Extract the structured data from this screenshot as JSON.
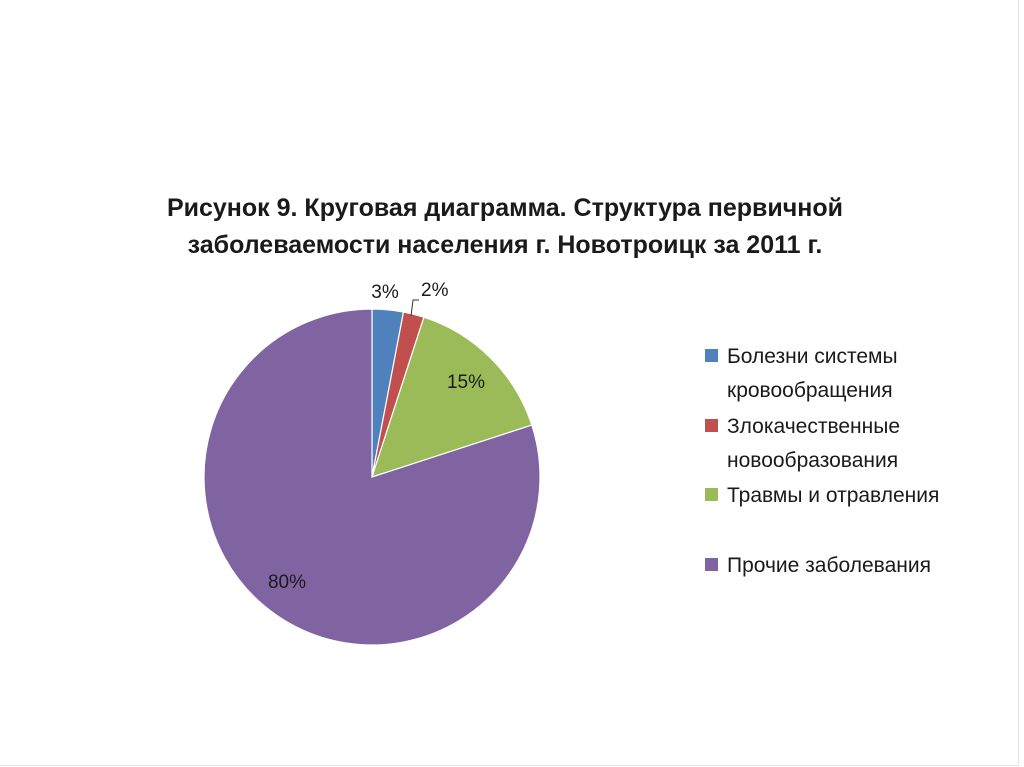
{
  "title_lines": [
    "Рисунок 9. Круговая диаграмма. Структура первичной",
    "заболеваемости населения г. Новотроицк за 2011 г."
  ],
  "chart_data": {
    "type": "pie",
    "title": "Рисунок 9. Круговая диаграмма. Структура первичной заболеваемости населения г. Новотроицк за 2011 г.",
    "legend_position": "right",
    "slices": [
      {
        "label": "Болезни системы кровообращения",
        "value": 3,
        "display": "3%",
        "color": "#4f81bd"
      },
      {
        "label": "Злокачественные новообразования",
        "value": 2,
        "display": "2%",
        "color": "#c0504d"
      },
      {
        "label": "Травмы и отравления",
        "value": 15,
        "display": "15%",
        "color": "#9bbb59"
      },
      {
        "label": "Прочие заболевания",
        "value": 80,
        "display": "80%",
        "color": "#8064a2"
      }
    ]
  }
}
